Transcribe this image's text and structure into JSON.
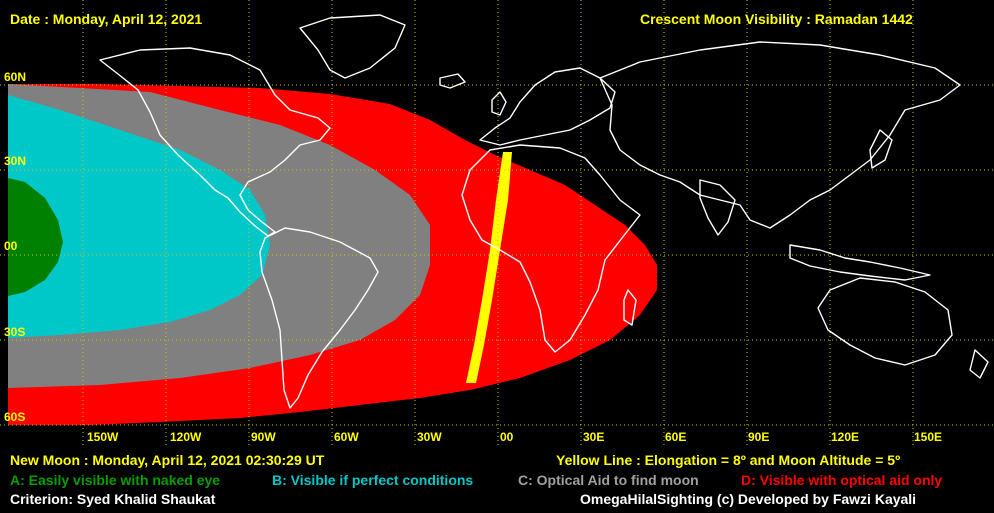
{
  "header": {
    "date": "Date : Monday, April 12, 2021",
    "title": "Crescent Moon Visibility : Ramadan  1442"
  },
  "lat_labels": [
    "60N",
    "30N",
    "00",
    "30S",
    "60S"
  ],
  "lon_labels": [
    "150W",
    "120W",
    "90W",
    "60W",
    "30W",
    "00",
    "30E",
    "60E",
    "90E",
    "120E",
    "150E"
  ],
  "footer": {
    "new_moon": "New Moon : Monday, April 12, 2021  02:30:29  UT",
    "yellow_line": "Yellow Line : Elongation = 8º  and Moon Altitude = 5º",
    "zone_a": "A: Easily visible with naked eye",
    "zone_b": "B: Visible if perfect conditions",
    "zone_c": "C: Optical Aid to find moon",
    "zone_d": "D: Visible with optical aid only",
    "criterion": "Criterion: Syed Khalid Shaukat",
    "credit": "OmegaHilalSighting  (c)  Developed by Fawzi Kayali"
  },
  "colors": {
    "background": "#000000",
    "zone_a": "#008000",
    "zone_b": "#00c8c8",
    "zone_c": "#808080",
    "zone_d": "#ff0000",
    "yellow_line": "#ffff00",
    "coastline": "#ffffff",
    "grid": "#c8c800",
    "label": "#ffff00"
  }
}
